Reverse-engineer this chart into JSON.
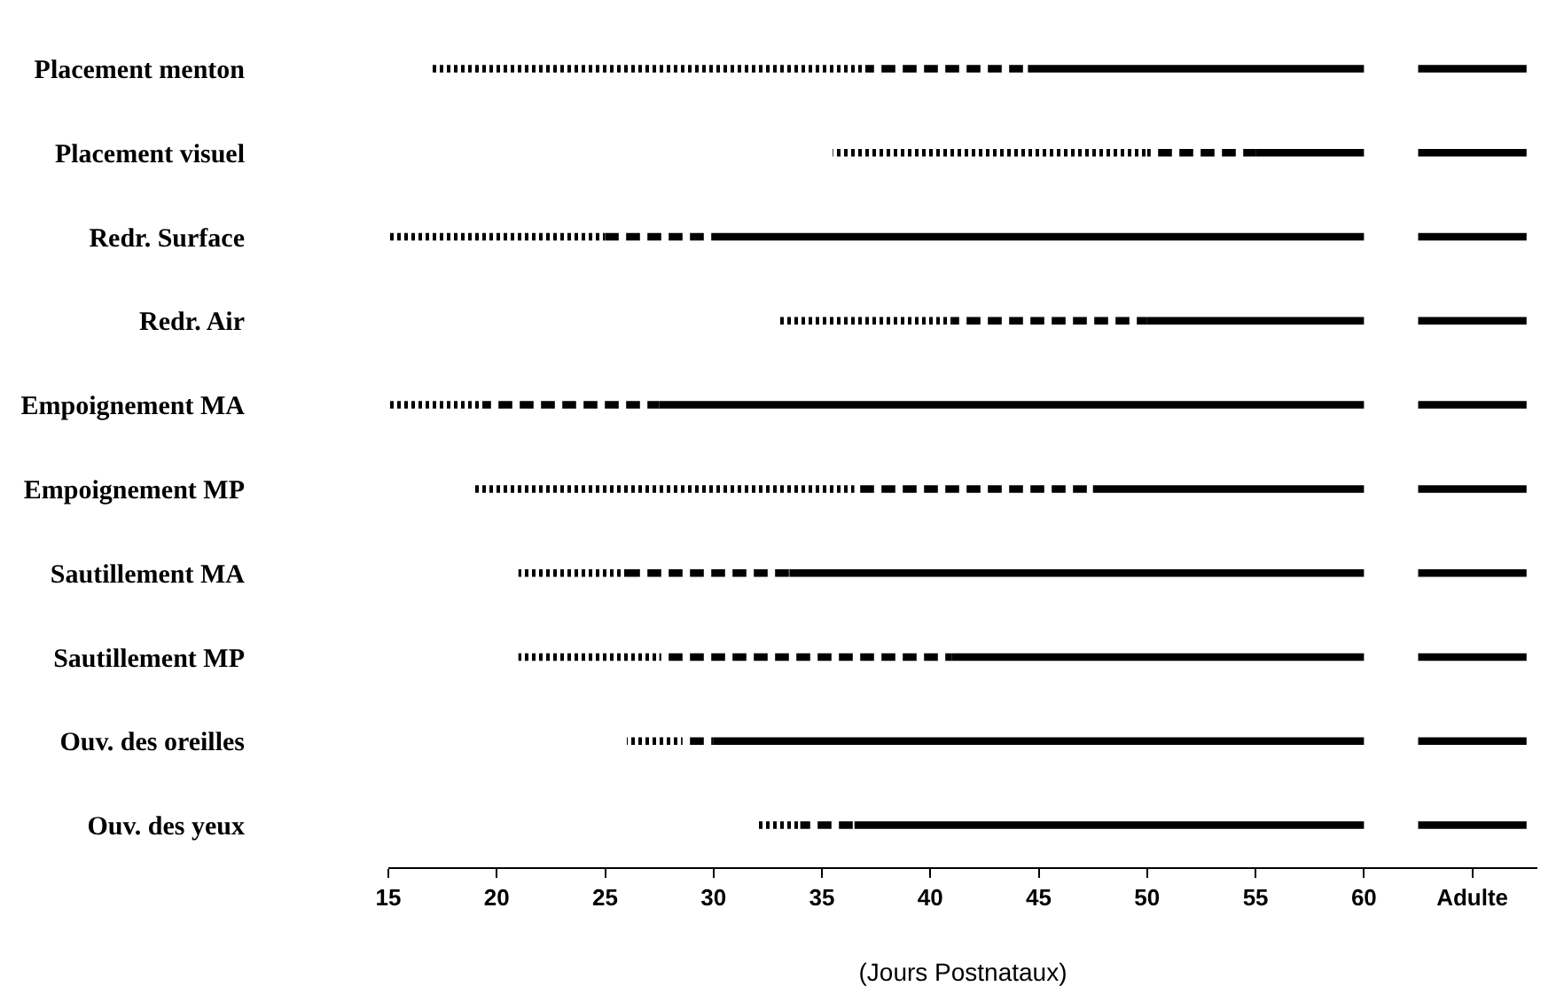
{
  "chart_data": {
    "type": "bar",
    "orientation": "horizontal",
    "xlabel": "(Jours Postnataux)",
    "categories": [
      "Placement menton",
      "Placement visuel",
      "Redr. Surface",
      "Redr. Air",
      "Empoignement MA",
      "Empoignement MP",
      "Sautillement MA",
      "Sautillement MP",
      "Ouv. des oreilles",
      "Ouv. des yeux"
    ],
    "series": [
      {
        "line_style": "dotted",
        "color": "#000000",
        "base": [
          17,
          35.5,
          15,
          33,
          15,
          19,
          21,
          21,
          26,
          32
        ],
        "values": [
          20,
          14.5,
          10,
          8,
          4.5,
          17.5,
          5,
          6.5,
          2.5,
          2
        ]
      },
      {
        "line_style": "dashed",
        "color": "#000000",
        "base": [
          37,
          50,
          25,
          41,
          19.5,
          36.5,
          26,
          27.5,
          28.5,
          34
        ],
        "values": [
          7.5,
          5,
          5.5,
          9,
          8,
          11,
          7.5,
          13.5,
          1.5,
          2.5
        ]
      },
      {
        "line_style": "solid",
        "color": "#000000",
        "base": [
          44.5,
          55,
          30.5,
          50,
          27.5,
          47.5,
          33.5,
          41,
          30,
          36.5
        ],
        "values": [
          15.5,
          5,
          29.5,
          10,
          32.5,
          12.5,
          26.5,
          19,
          30,
          23.5
        ]
      },
      {
        "line_style": "solid",
        "color": "#000000",
        "base": [
          62.5,
          62.5,
          62.5,
          62.5,
          62.5,
          62.5,
          62.5,
          62.5,
          62.5,
          62.5
        ],
        "values": [
          5,
          5,
          5,
          5,
          5,
          5,
          5,
          5,
          5,
          5
        ]
      }
    ],
    "xlim": [
      15,
      68
    ],
    "xticks": [
      15,
      20,
      25,
      30,
      35,
      40,
      45,
      50,
      55,
      60,
      {
        "value": 65,
        "label": "Adulte"
      }
    ],
    "tick_labels": "xy"
  }
}
